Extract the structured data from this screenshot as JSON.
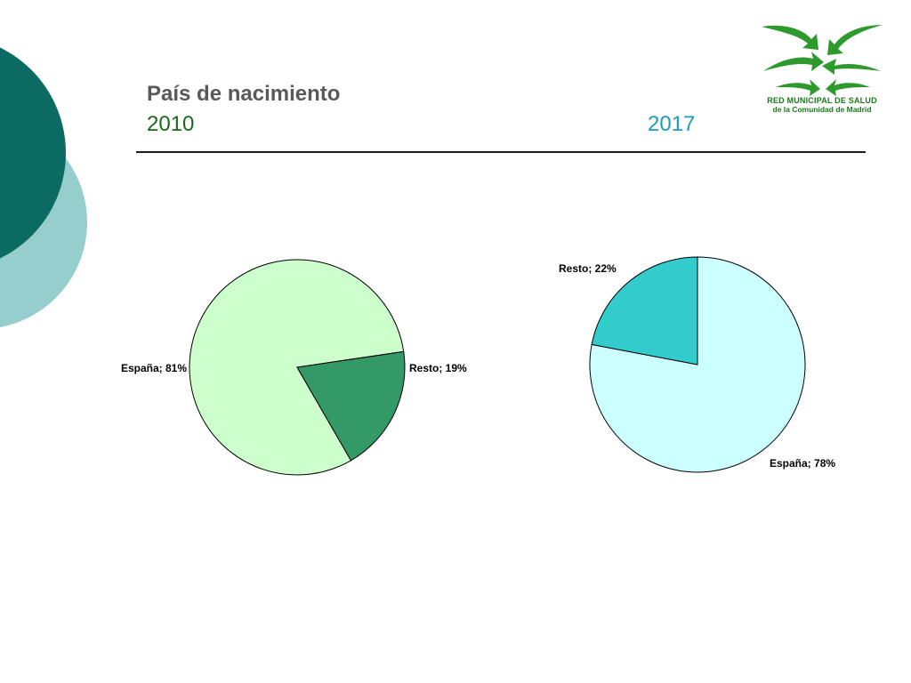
{
  "slide": {
    "title": "País de nacimiento",
    "year_left": "2010",
    "year_right": "2017"
  },
  "logo": {
    "line1": "RED MUNICIPAL DE SALUD",
    "line2": "de la Comunidad de Madrid",
    "icon": "four-arrows-logo-icon",
    "color": "#2e9a2e"
  },
  "colors": {
    "deco_dark": "#0b6b63",
    "deco_light": "#96cdcd"
  },
  "chart_data": [
    {
      "type": "pie",
      "categories": [
        "España",
        "Resto"
      ],
      "values": [
        81,
        19
      ],
      "labels": [
        "España; 81%",
        "Resto; 19%"
      ],
      "colors": [
        "#ccffcc",
        "#339966"
      ],
      "start_angle": 0
    },
    {
      "type": "pie",
      "categories": [
        "España",
        "Resto"
      ],
      "values": [
        78,
        22
      ],
      "labels": [
        "España; 78%",
        "Resto; 22%"
      ],
      "colors": [
        "#ccffff",
        "#33cccc"
      ],
      "start_angle": 0
    }
  ]
}
